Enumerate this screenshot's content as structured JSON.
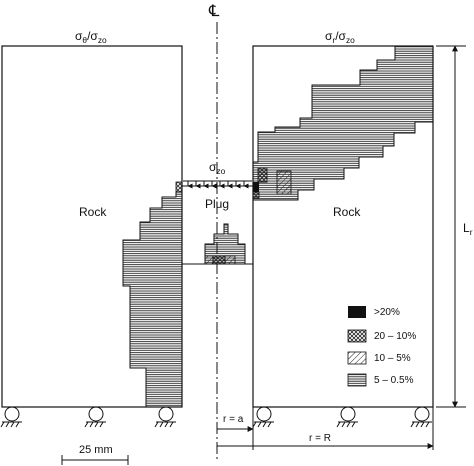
{
  "title_left": {
    "num": "σ",
    "num_sub": "θ",
    "den": "/σ",
    "den_sub": "zo"
  },
  "title_right": {
    "num": "σ",
    "num_sub": "r",
    "den": "/σ",
    "den_sub": "zo"
  },
  "centerline_symbol": "℄",
  "load_label": {
    "base": "σ",
    "sub": "zo"
  },
  "region_rock_left": "Rock",
  "region_rock_right": "Rock",
  "region_plug": "Plug",
  "dimension_lr": {
    "base": "L",
    "sub": "r"
  },
  "dimension_a": "r = a",
  "dimension_R": "r = R",
  "scale_bar": "25 mm",
  "legend": [
    {
      "label": ">20%",
      "pattern": "solid"
    },
    {
      "label": "20 – 10%",
      "pattern": "crosshatch"
    },
    {
      "label": "10 – 5%",
      "pattern": "diagonal"
    },
    {
      "label": "5 – 0.5%",
      "pattern": "horizontal"
    }
  ]
}
